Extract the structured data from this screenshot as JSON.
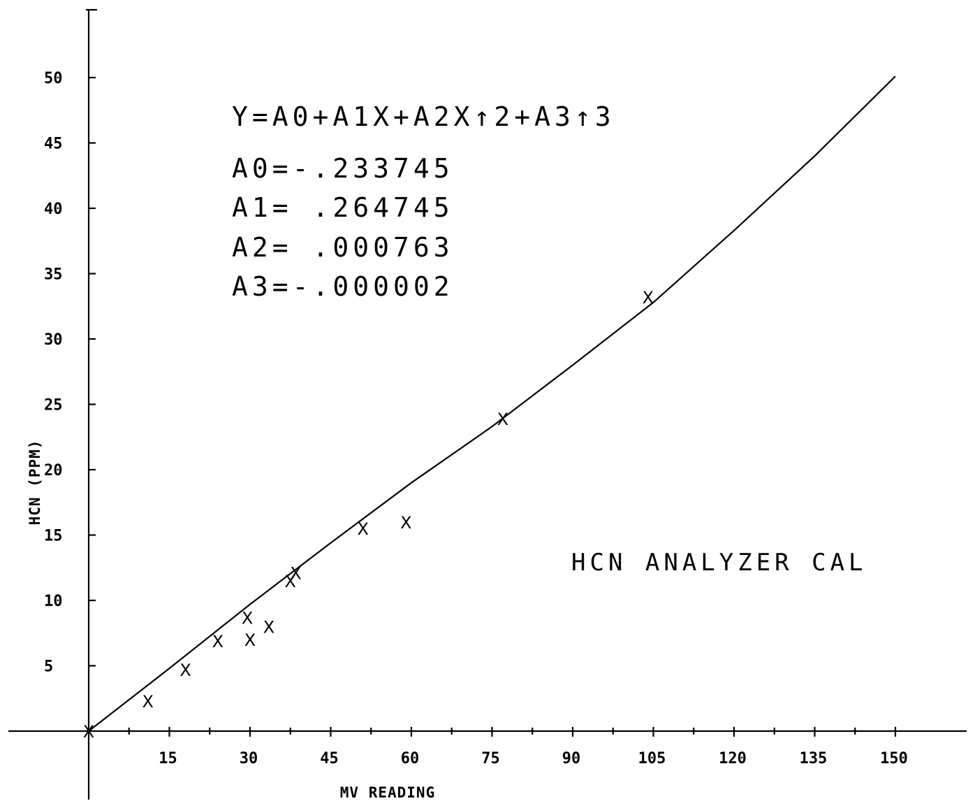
{
  "chart_data": {
    "type": "scatter",
    "title": "HCN ANALYZER CAL",
    "xlabel": "MV READING",
    "ylabel": "HCN (PPM)",
    "xlim": [
      0,
      150
    ],
    "ylim": [
      0,
      50
    ],
    "xticks": [
      15,
      30,
      45,
      60,
      75,
      90,
      105,
      120,
      135,
      150
    ],
    "yticks": [
      5,
      10,
      15,
      20,
      25,
      30,
      35,
      40,
      45,
      50
    ],
    "xtick_labels": [
      "15",
      "30",
      "45",
      "60",
      "75",
      "90",
      "105",
      "120",
      "135",
      "150"
    ],
    "ytick_labels": [
      "5",
      "10",
      "15",
      "20",
      "25",
      "30",
      "35",
      "40",
      "45",
      "50"
    ],
    "grid": false,
    "equation": "Y=A0+A1X+A2X↑2+A3↑3",
    "coefficients": [
      {
        "label": "A0=-.233745",
        "value": -0.233745
      },
      {
        "label": "A1= .264745",
        "value": 0.264745
      },
      {
        "label": "A2= .000763",
        "value": 0.000763
      },
      {
        "label": "A3=-.000002",
        "value": -2e-06
      }
    ],
    "point_marker": "X",
    "points": [
      {
        "x": 0,
        "y": 0
      },
      {
        "x": 11,
        "y": 2.3
      },
      {
        "x": 18,
        "y": 4.7
      },
      {
        "x": 24,
        "y": 6.9
      },
      {
        "x": 29.5,
        "y": 8.7
      },
      {
        "x": 30,
        "y": 7.0
      },
      {
        "x": 33.5,
        "y": 8.0
      },
      {
        "x": 37.5,
        "y": 11.5
      },
      {
        "x": 38.5,
        "y": 12.1
      },
      {
        "x": 51,
        "y": 15.5
      },
      {
        "x": 59,
        "y": 16.0
      },
      {
        "x": 77,
        "y": 23.9
      },
      {
        "x": 104,
        "y": 33.2
      }
    ],
    "fit_line": {
      "x": [
        0,
        15,
        30,
        45,
        60,
        75,
        90,
        105,
        120,
        135,
        150
      ],
      "y": [
        0,
        4.8,
        9.7,
        14.4,
        19.0,
        23.3,
        28.0,
        32.8,
        38.3,
        44.0,
        50.1
      ]
    }
  }
}
